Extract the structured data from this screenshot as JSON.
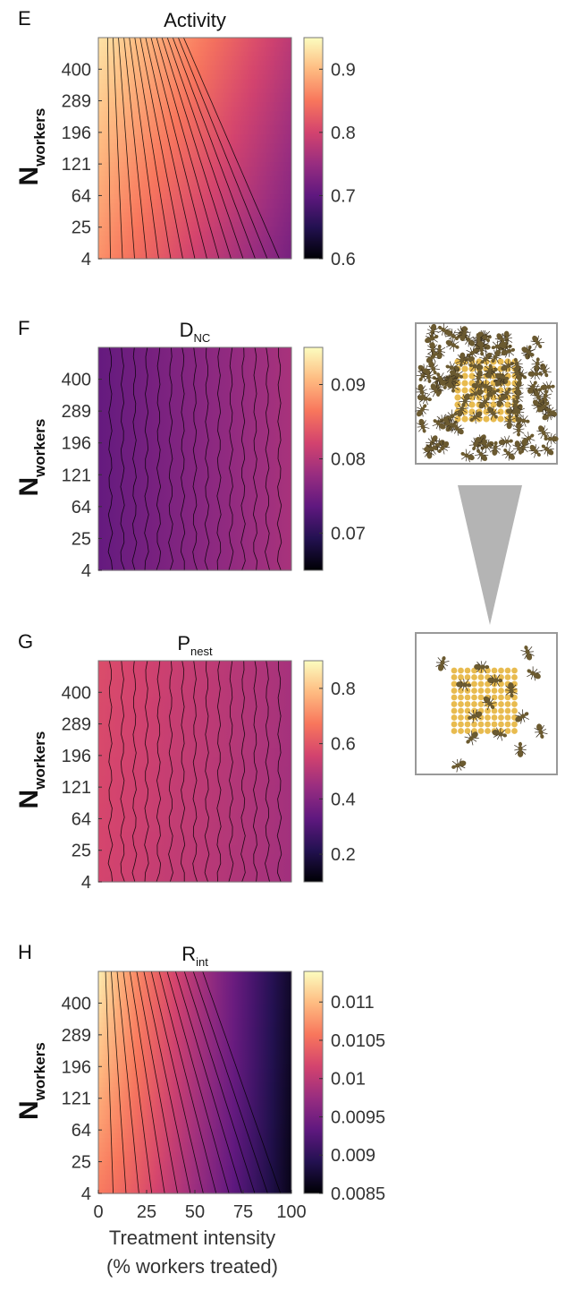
{
  "colors": {
    "colormap": [
      "#000004",
      "#231151",
      "#5f187f",
      "#982d80",
      "#d3436e",
      "#f8765c",
      "#febb81",
      "#fcfdbf"
    ],
    "contour_line": "#000000",
    "frame": "#999999",
    "arrow": "#b4b4b4",
    "nest_cell": "#e6b43c",
    "ant": "#6b5a30"
  },
  "x_ticks": [
    "0",
    "25",
    "50",
    "75",
    "100"
  ],
  "xlabel_line1": "Treatment intensity",
  "xlabel_line2": "(% workers treated)",
  "ylabel_main": "N",
  "ylabel_sub": "workers",
  "illustration": {
    "top": "ants-dispersed-illustration",
    "arrow": "decreasing-arrow-icon",
    "bottom": "ants-on-nest-illustration"
  },
  "chart_data": [
    {
      "type": "heatmap",
      "panel": "E",
      "title": "Activity",
      "title_sub": "",
      "x": [
        0,
        25,
        50,
        75,
        100
      ],
      "y_ticks": [
        "4",
        "25",
        "64",
        "121",
        "196",
        "289",
        "400"
      ],
      "colorbar_ticks": [
        "0.6",
        "0.7",
        "0.8",
        "0.9"
      ],
      "clim": [
        0.6,
        0.95
      ],
      "corner_values": {
        "x0_ymin": 0.87,
        "x0_ymax": 0.93,
        "x100_ymin": 0.72,
        "x100_ymax": 0.78
      }
    },
    {
      "type": "heatmap",
      "panel": "F",
      "title": "D",
      "title_sub": "NC",
      "x": [
        0,
        25,
        50,
        75,
        100
      ],
      "y_ticks": [
        "4",
        "25",
        "64",
        "121",
        "196",
        "289",
        "400"
      ],
      "colorbar_ticks": [
        "0.07",
        "0.08",
        "0.09"
      ],
      "clim": [
        0.065,
        0.095
      ],
      "corner_values": {
        "x0_ymin": 0.074,
        "x0_ymax": 0.074,
        "x100_ymin": 0.079,
        "x100_ymax": 0.079
      }
    },
    {
      "type": "heatmap",
      "panel": "G",
      "title": "P",
      "title_sub": "nest",
      "x": [
        0,
        25,
        50,
        75,
        100
      ],
      "y_ticks": [
        "4",
        "25",
        "64",
        "121",
        "196",
        "289",
        "400"
      ],
      "colorbar_ticks": [
        "0.2",
        "0.4",
        "0.6",
        "0.8"
      ],
      "clim": [
        0.1,
        0.9
      ],
      "corner_values": {
        "x0_ymin": 0.56,
        "x0_ymax": 0.58,
        "x100_ymin": 0.46,
        "x100_ymax": 0.47
      }
    },
    {
      "type": "heatmap",
      "panel": "H",
      "title": "R",
      "title_sub": "int",
      "x": [
        0,
        25,
        50,
        75,
        100
      ],
      "y_ticks": [
        "4",
        "25",
        "64",
        "121",
        "196",
        "289",
        "400"
      ],
      "colorbar_ticks": [
        "0.0085",
        "0.009",
        "0.0095",
        "0.01",
        "0.0105",
        "0.011"
      ],
      "clim": [
        0.0085,
        0.0114
      ],
      "corner_values": {
        "x0_ymin": 0.0106,
        "x0_ymax": 0.0113,
        "x100_ymin": 0.0086,
        "x100_ymax": 0.0087
      }
    }
  ]
}
